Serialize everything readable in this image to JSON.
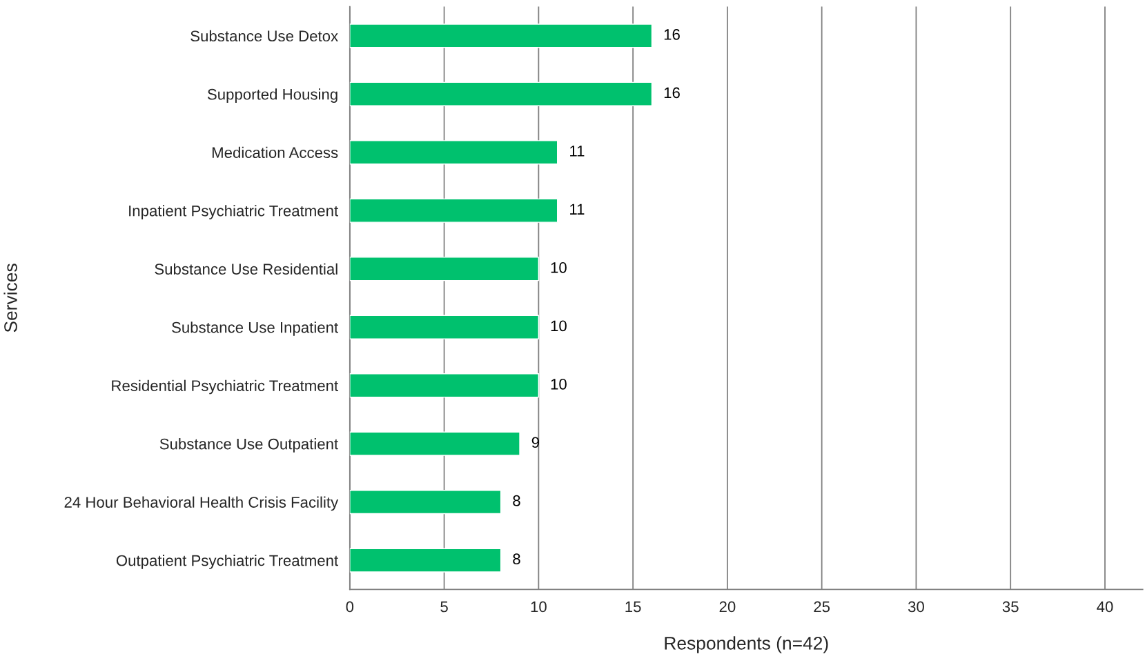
{
  "chart_data": {
    "type": "bar",
    "orientation": "horizontal",
    "xlabel": "Respondents (n=42)",
    "ylabel": "Services",
    "categories": [
      "Substance Use Detox",
      "Supported Housing",
      "Medication Access",
      "Inpatient Psychiatric Treatment",
      "Substance Use Residential",
      "Substance Use Inpatient",
      "Residential Psychiatric Treatment",
      "Substance Use Outpatient",
      "24 Hour Behavioral Health Crisis Facility",
      "Outpatient Psychiatric Treatment"
    ],
    "values": [
      16,
      16,
      11,
      11,
      10,
      10,
      10,
      9,
      8,
      8
    ],
    "color": "#00c16e",
    "xlim": [
      0,
      42
    ],
    "xticks": [
      0,
      5,
      10,
      15,
      20,
      25,
      30,
      35,
      40
    ],
    "grid": "x",
    "data_labels": true,
    "legend": false
  }
}
